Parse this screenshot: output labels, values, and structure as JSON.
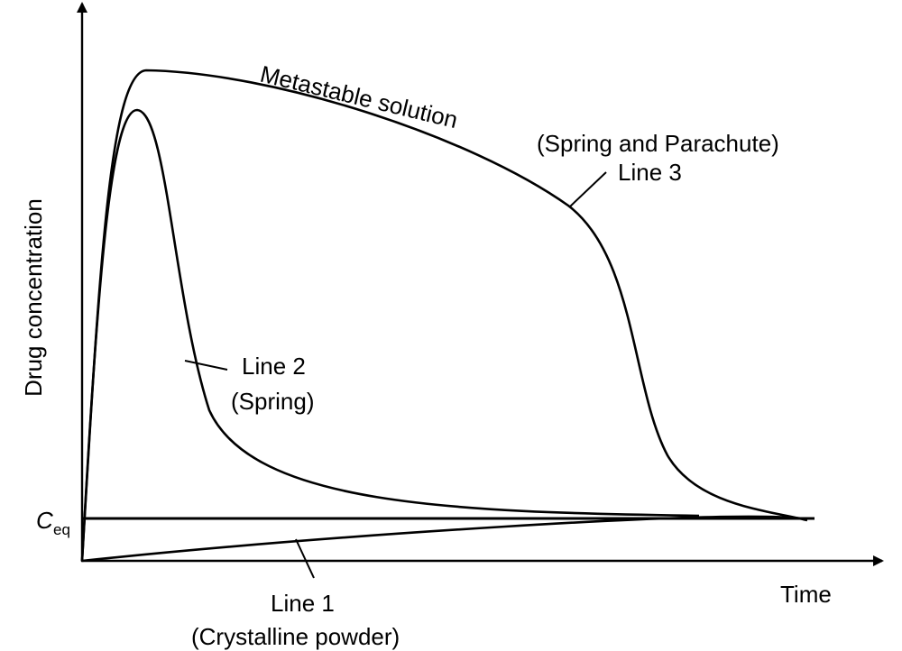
{
  "chart_data": {
    "type": "line",
    "title": "",
    "xlabel": "Time",
    "ylabel": "Drug concentration",
    "reference_line": {
      "label_main": "C",
      "label_sub": "eq"
    },
    "series": [
      {
        "name": "Line 1",
        "description": "(Crystalline powder)"
      },
      {
        "name": "Line 2",
        "description": "(Spring)"
      },
      {
        "name": "Line 3",
        "description": "(Spring and Parachute)"
      }
    ],
    "annotations": {
      "metastable": "Metastable solution"
    }
  }
}
